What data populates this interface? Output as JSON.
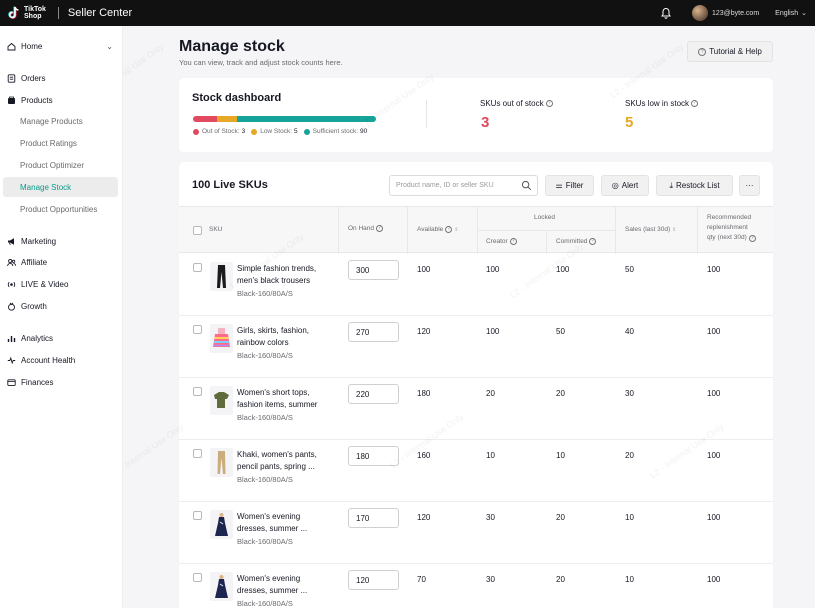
{
  "topbar": {
    "logo_text_line1": "TikTok",
    "logo_text_line2": "Shop",
    "app_title": "Seller Center",
    "email": "123@byte.com",
    "language": "English"
  },
  "sidebar": {
    "home": "Home",
    "orders": "Orders",
    "products": "Products",
    "products_sub": [
      "Manage Products",
      "Product Ratings",
      "Product Optimizer",
      "Manage Stock",
      "Product Opportunities"
    ],
    "active_sub": "Manage Stock",
    "marketing": "Marketing",
    "affiliate": "Affiliate",
    "live_video": "LIVE & Video",
    "growth": "Growth",
    "analytics": "Analytics",
    "account_health": "Account Health",
    "finances": "Finances"
  },
  "page": {
    "title": "Manage stock",
    "subtitle": "You can view, track and adjust stock counts here.",
    "tutorial_button": "Tutorial & Help"
  },
  "dashboard": {
    "title": "Stock dashboard",
    "out_of_stock_label": "Out of Stock:",
    "out_of_stock_count": "3",
    "low_stock_label": "Low Stock:",
    "low_stock_count": "5",
    "sufficient_label": "Sufficient stock:",
    "sufficient_count": "90",
    "skus_out_label": "SKUs out of stock",
    "skus_out_value": "3",
    "skus_low_label": "SKUs low in stock",
    "skus_low_value": "5",
    "colors": {
      "out": "#e0495e",
      "low": "#e7a727",
      "sufficient": "#15a39a"
    }
  },
  "list": {
    "title": "100 Live SKUs",
    "search_placeholder": "Product name, ID or seller SKU",
    "filter_button": "Filter",
    "alert_button": "Alert",
    "restock_button": "Restock List",
    "more_button": "···",
    "columns": {
      "sku": "SKU",
      "on_hand": "On Hand",
      "available": "Available",
      "locked": "Locked",
      "creator": "Creator",
      "committed": "Committed",
      "sales": "Sales  (last 30d)",
      "recommended_line1": "Recommended",
      "recommended_line2": "replenishment",
      "recommended_line3": "qty (next 30d)"
    },
    "rows": [
      {
        "name": "Simple fashion trends, men's black trousers",
        "variant": "Black-160/80A/S",
        "on_hand": "300",
        "available": "100",
        "creator": "100",
        "committed": "100",
        "sales": "50",
        "recommended": "100",
        "thumb": "black-trousers"
      },
      {
        "name": "Girls, skirts, fashion, rainbow colors",
        "variant": "Black-160/80A/S",
        "on_hand": "270",
        "available": "120",
        "creator": "100",
        "committed": "50",
        "sales": "40",
        "recommended": "100",
        "thumb": "rainbow-skirt"
      },
      {
        "name": "Women's short tops, fashion items, summer",
        "variant": "Black-160/80A/S",
        "on_hand": "220",
        "available": "180",
        "creator": "20",
        "committed": "20",
        "sales": "30",
        "recommended": "100",
        "thumb": "green-top"
      },
      {
        "name": "Khaki, women's pants, pencil pants, spring ...",
        "variant": "Black-160/80A/S",
        "on_hand": "180",
        "available": "160",
        "creator": "10",
        "committed": "10",
        "sales": "20",
        "recommended": "100",
        "thumb": "khaki-pants"
      },
      {
        "name": "Women's evening dresses, summer ...",
        "variant": "Black-160/80A/S",
        "on_hand": "170",
        "available": "120",
        "creator": "30",
        "committed": "20",
        "sales": "10",
        "recommended": "100",
        "thumb": "evening-dress"
      },
      {
        "name": "Women's evening dresses, summer ...",
        "variant": "Black-160/80A/S",
        "on_hand": "120",
        "available": "70",
        "creator": "30",
        "committed": "20",
        "sales": "10",
        "recommended": "100",
        "thumb": "evening-dress"
      }
    ]
  },
  "watermark": "L2 - Internal Use Only"
}
